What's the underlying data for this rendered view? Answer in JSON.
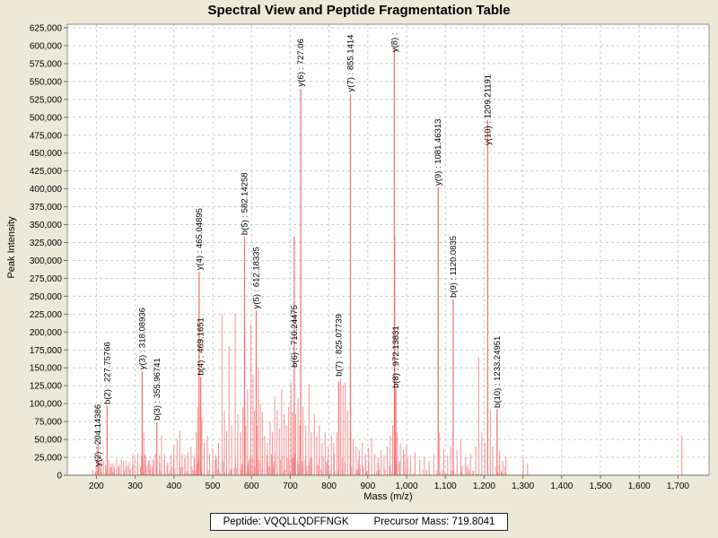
{
  "title": "Spectral View and Peptide Fragmentation Table",
  "footer": {
    "peptide": "Peptide: VQQLLQDFFNGK",
    "precursor": "Precursor Mass: 719.8041"
  },
  "chart_data": {
    "type": "bar",
    "title": "Spectral View and Peptide Fragmentation Table",
    "xlabel": "Mass (m/z)",
    "ylabel": "Peak Intensity",
    "xlim": [
      125,
      1780
    ],
    "ylim": [
      0,
      630000
    ],
    "grid": true,
    "x_ticks": [
      200,
      300,
      400,
      500,
      600,
      700,
      800,
      900,
      1000,
      1100,
      1200,
      1300,
      1400,
      1500,
      1600,
      1700
    ],
    "y_tick_step": 25000,
    "y_tick_max": 625000,
    "peak_color": "#f97f7f",
    "labeled_peaks": [
      {
        "label": "y(2) : 204.14386",
        "mz": 204.14386,
        "intensity": 44000,
        "label_base": 12500
      },
      {
        "label": "b(2) : 227.75766",
        "mz": 227.75766,
        "intensity": 97000,
        "label_base": 99000
      },
      {
        "label": "y(3) : 318.08936",
        "mz": 318.08936,
        "intensity": 145000,
        "label_base": 147500
      },
      {
        "label": "b(3) : 355.96741",
        "mz": 355.96741,
        "intensity": 74000,
        "label_base": 76500
      },
      {
        "label": "y(4) : 465.04895",
        "mz": 465.04895,
        "intensity": 284000,
        "label_base": 286500
      },
      {
        "label": "b(4) : 469.1651",
        "mz": 469.1651,
        "intensity": 137000,
        "label_base": 139500
      },
      {
        "label": "b(5) : 582.14258",
        "mz": 582.14258,
        "intensity": 333000,
        "label_base": 335500
      },
      {
        "label": "y(5) : 612.18335",
        "mz": 612.18335,
        "intensity": 230000,
        "label_base": 232500
      },
      {
        "label": "b(6) : 710.24475",
        "mz": 710.24475,
        "intensity": 333000,
        "label_base": 150500
      },
      {
        "label": "y(6) : 727.06",
        "mz": 727.06,
        "intensity": 540000,
        "label_base": 543000
      },
      {
        "label": "b(7) : 825.07739",
        "mz": 825.07739,
        "intensity": 131000,
        "label_base": 138000
      },
      {
        "label": "y(7) : 855.1414",
        "mz": 855.1414,
        "intensity": 532000,
        "label_base": 535500
      },
      {
        "label": "y(8) :",
        "mz": 968.5,
        "intensity": 597000,
        "label_base": 591000
      },
      {
        "label": "b(8) : 972.13831",
        "mz": 972.13831,
        "intensity": 120000,
        "label_base": 121500
      },
      {
        "label": "y(9) : 1081.46313",
        "mz": 1081.46313,
        "intensity": 402000,
        "label_base": 404500
      },
      {
        "label": "b(9) : 1120.0835",
        "mz": 1120.0835,
        "intensity": 246000,
        "label_base": 248000
      },
      {
        "label": "y(10) : 1209.21191",
        "mz": 1209.21191,
        "intensity": 497000,
        "label_base": 461000
      },
      {
        "label": "b(10) : 1233.24951",
        "mz": 1233.24951,
        "intensity": 92000,
        "label_base": 94000
      }
    ],
    "minor_peaks": [
      [
        191,
        7000
      ],
      [
        197,
        5000
      ],
      [
        206,
        18000
      ],
      [
        210,
        12000
      ],
      [
        213,
        25000
      ],
      [
        218,
        21000
      ],
      [
        224,
        14000
      ],
      [
        232,
        21000
      ],
      [
        238,
        16000
      ],
      [
        246,
        12000
      ],
      [
        252,
        9000
      ],
      [
        258,
        10000
      ],
      [
        264,
        22000
      ],
      [
        270,
        20000
      ],
      [
        276,
        11000
      ],
      [
        281,
        14000
      ],
      [
        287,
        9000
      ],
      [
        293,
        12000
      ],
      [
        299,
        25000
      ],
      [
        306,
        18000
      ],
      [
        314,
        12000
      ],
      [
        322,
        60000
      ],
      [
        327,
        28000
      ],
      [
        334,
        20000
      ],
      [
        340,
        15000
      ],
      [
        347,
        22000
      ],
      [
        352,
        30000
      ],
      [
        368,
        56000
      ],
      [
        376,
        22000
      ],
      [
        384,
        18000
      ],
      [
        392,
        28000
      ],
      [
        400,
        42000
      ],
      [
        408,
        50000
      ],
      [
        415,
        62000
      ],
      [
        421,
        30000
      ],
      [
        428,
        24000
      ],
      [
        436,
        32000
      ],
      [
        444,
        40000
      ],
      [
        452,
        28000
      ],
      [
        458,
        60000
      ],
      [
        461,
        95000
      ],
      [
        472,
        80000
      ],
      [
        478,
        45000
      ],
      [
        486,
        55000
      ],
      [
        492,
        30000
      ],
      [
        500,
        38000
      ],
      [
        508,
        28000
      ],
      [
        515,
        45000
      ],
      [
        524,
        225000
      ],
      [
        530,
        90000
      ],
      [
        536,
        62000
      ],
      [
        542,
        180000
      ],
      [
        549,
        70000
      ],
      [
        558,
        226000
      ],
      [
        565,
        85000
      ],
      [
        572,
        60000
      ],
      [
        578,
        95000
      ],
      [
        585,
        70000
      ],
      [
        590,
        120000
      ],
      [
        598,
        212000
      ],
      [
        604,
        140000
      ],
      [
        608,
        90000
      ],
      [
        614,
        70000
      ],
      [
        618,
        150000
      ],
      [
        623,
        100000
      ],
      [
        628,
        88000
      ],
      [
        634,
        55000
      ],
      [
        641,
        45000
      ],
      [
        648,
        75000
      ],
      [
        654,
        60000
      ],
      [
        660,
        110000
      ],
      [
        666,
        90000
      ],
      [
        672,
        65000
      ],
      [
        678,
        120000
      ],
      [
        684,
        85000
      ],
      [
        690,
        70000
      ],
      [
        696,
        95000
      ],
      [
        702,
        130000
      ],
      [
        706,
        88000
      ],
      [
        714,
        85000
      ],
      [
        720,
        108000
      ],
      [
        724,
        70000
      ],
      [
        733,
        95000
      ],
      [
        740,
        70000
      ],
      [
        748,
        128000
      ],
      [
        754,
        60000
      ],
      [
        762,
        85000
      ],
      [
        768,
        55000
      ],
      [
        775,
        70000
      ],
      [
        782,
        45000
      ],
      [
        790,
        60000
      ],
      [
        798,
        40000
      ],
      [
        806,
        55000
      ],
      [
        812,
        45000
      ],
      [
        820,
        60000
      ],
      [
        830,
        135000
      ],
      [
        836,
        125000
      ],
      [
        842,
        130000
      ],
      [
        848,
        90000
      ],
      [
        856,
        60000
      ],
      [
        862,
        50000
      ],
      [
        870,
        40000
      ],
      [
        878,
        35000
      ],
      [
        886,
        45000
      ],
      [
        894,
        30000
      ],
      [
        902,
        38000
      ],
      [
        910,
        52000
      ],
      [
        918,
        30000
      ],
      [
        926,
        25000
      ],
      [
        934,
        35000
      ],
      [
        942,
        28000
      ],
      [
        950,
        40000
      ],
      [
        958,
        55000
      ],
      [
        964,
        70000
      ],
      [
        970,
        335000
      ],
      [
        976,
        60000
      ],
      [
        984,
        45000
      ],
      [
        992,
        35000
      ],
      [
        1000,
        42000
      ],
      [
        1010,
        28000
      ],
      [
        1022,
        32000
      ],
      [
        1034,
        22000
      ],
      [
        1046,
        26000
      ],
      [
        1058,
        20000
      ],
      [
        1070,
        30000
      ],
      [
        1085,
        60000
      ],
      [
        1096,
        35000
      ],
      [
        1106,
        28000
      ],
      [
        1114,
        40000
      ],
      [
        1130,
        35000
      ],
      [
        1140,
        48000
      ],
      [
        1152,
        25000
      ],
      [
        1165,
        30000
      ],
      [
        1178,
        40000
      ],
      [
        1186,
        165000
      ],
      [
        1194,
        60000
      ],
      [
        1202,
        45000
      ],
      [
        1216,
        90000
      ],
      [
        1222,
        40000
      ],
      [
        1240,
        35000
      ],
      [
        1248,
        20000
      ],
      [
        1256,
        27000
      ],
      [
        1301,
        25000
      ],
      [
        1312,
        16000
      ],
      [
        1710,
        55000
      ]
    ],
    "noise": {
      "seed": 42,
      "main": {
        "count": 300,
        "range": [
          196,
          1008
        ],
        "max": 30000
      },
      "high": {
        "count": 55,
        "range": [
          1008,
          1258
        ],
        "max": 15000
      }
    }
  }
}
